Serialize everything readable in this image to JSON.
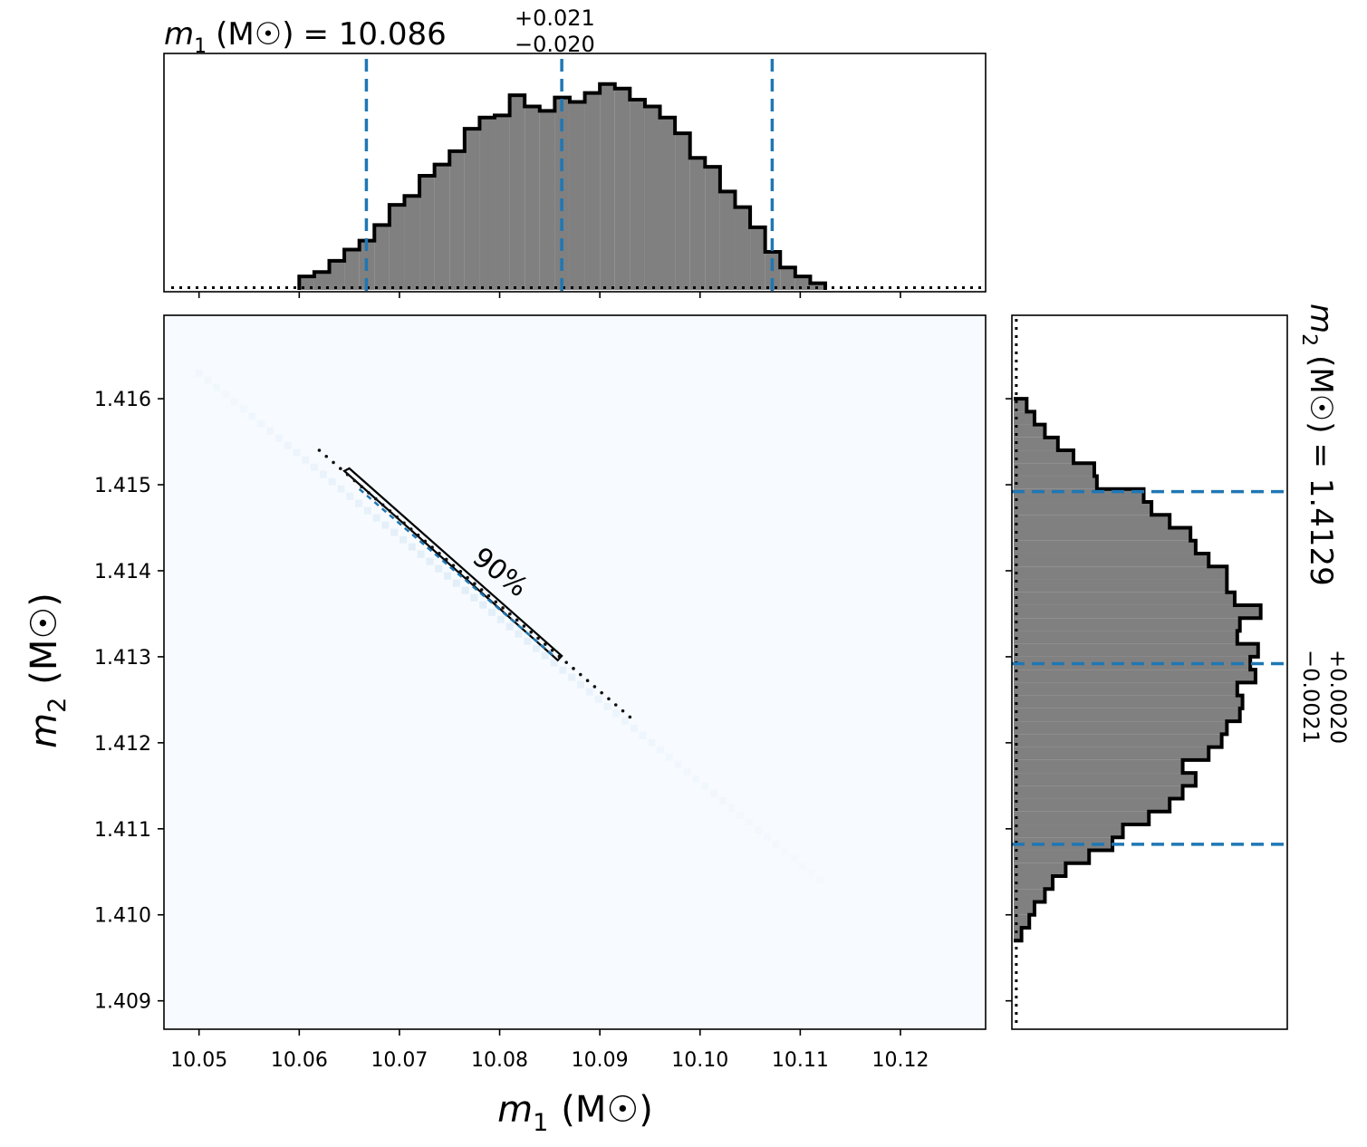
{
  "chart_data": [
    {
      "panel": "m1-marginal",
      "type": "area",
      "title": {
        "symbol": "m",
        "sub": "1",
        "unit": "(M☉)",
        "equals": "= 10.086",
        "sup": "+0.021",
        "inf": "−0.020"
      },
      "xlim": [
        10.0465,
        10.1285
      ],
      "bin_edges": [
        10.06,
        10.0615,
        10.063,
        10.0645,
        10.066,
        10.0675,
        10.069,
        10.0705,
        10.072,
        10.0735,
        10.075,
        10.0765,
        10.078,
        10.0795,
        10.081,
        10.0825,
        10.084,
        10.0855,
        10.087,
        10.0885,
        10.09,
        10.0915,
        10.093,
        10.0945,
        10.096,
        10.0975,
        10.099,
        10.1005,
        10.102,
        10.1035,
        10.105,
        10.1065,
        10.108,
        10.1095,
        10.111,
        10.1125
      ],
      "values": [
        0.06,
        0.08,
        0.13,
        0.18,
        0.22,
        0.29,
        0.38,
        0.42,
        0.51,
        0.56,
        0.62,
        0.72,
        0.77,
        0.78,
        0.87,
        0.82,
        0.8,
        0.86,
        0.84,
        0.88,
        0.92,
        0.9,
        0.85,
        0.82,
        0.77,
        0.7,
        0.59,
        0.55,
        0.44,
        0.37,
        0.28,
        0.17,
        0.1,
        0.06,
        0.03
      ],
      "quantiles": [
        10.0667,
        10.0862,
        10.1072
      ],
      "prior_level": 0.01
    },
    {
      "panel": "joint",
      "type": "heatmap",
      "xlabel": {
        "symbol": "m",
        "sub": "1",
        "unit": "(M☉)"
      },
      "ylabel": {
        "symbol": "m",
        "sub": "2",
        "unit": "(M☉)"
      },
      "xlim": [
        10.0465,
        10.1285
      ],
      "ylim": [
        1.40867,
        1.41697
      ],
      "xticks": [
        10.05,
        10.06,
        10.07,
        10.08,
        10.09,
        10.1,
        10.11,
        10.12
      ],
      "xtick_labels": [
        "10.05",
        "10.06",
        "10.07",
        "10.08",
        "10.09",
        "10.10",
        "10.11",
        "10.12"
      ],
      "yticks": [
        1.409,
        1.41,
        1.411,
        1.412,
        1.413,
        1.414,
        1.415,
        1.416
      ],
      "ytick_labels": [
        "1.409",
        "1.410",
        "1.411",
        "1.412",
        "1.413",
        "1.414",
        "1.415",
        "1.416"
      ],
      "ridge": {
        "x_start": 10.05,
        "y_start": 1.4163,
        "x_end": 10.112,
        "y_end": 1.4104
      },
      "contour": {
        "label": "90%",
        "points": [
          [
            10.0645,
            1.41516
          ],
          [
            10.065,
            1.41519
          ],
          [
            10.0862,
            1.41301
          ],
          [
            10.0858,
            1.41296
          ]
        ],
        "markers_from": [
          10.062,
          1.4154
        ],
        "markers_to": [
          10.093,
          1.4123
        ]
      },
      "colors": {
        "background": "#f7fbff",
        "ridge": "#deebf7",
        "contour": "#000000",
        "median": "#1f77b4"
      }
    },
    {
      "panel": "m2-marginal",
      "type": "area",
      "title": {
        "symbol": "m",
        "sub": "2",
        "unit": "(M☉)",
        "equals": "= 1.4129",
        "sup": "+0.0020",
        "inf": "−0.0021"
      },
      "ylim": [
        1.40867,
        1.41697
      ],
      "bin_edges": [
        1.4097,
        1.40985,
        1.41,
        1.41015,
        1.4103,
        1.41045,
        1.4106,
        1.41075,
        1.4109,
        1.41105,
        1.4112,
        1.41135,
        1.4115,
        1.41165,
        1.4118,
        1.41195,
        1.4121,
        1.41225,
        1.4124,
        1.41255,
        1.4127,
        1.41285,
        1.413,
        1.41315,
        1.4133,
        1.41345,
        1.4136,
        1.41375,
        1.4139,
        1.41405,
        1.4142,
        1.41435,
        1.4145,
        1.41465,
        1.4148,
        1.41495,
        1.4151,
        1.41525,
        1.4154,
        1.41555,
        1.4157,
        1.41585,
        1.416
      ],
      "values": [
        0.03,
        0.06,
        0.08,
        0.12,
        0.15,
        0.2,
        0.29,
        0.38,
        0.42,
        0.52,
        0.6,
        0.65,
        0.7,
        0.65,
        0.75,
        0.8,
        0.82,
        0.87,
        0.88,
        0.86,
        0.93,
        0.91,
        0.94,
        0.86,
        0.87,
        0.95,
        0.85,
        0.82,
        0.82,
        0.75,
        0.7,
        0.68,
        0.6,
        0.53,
        0.5,
        0.32,
        0.31,
        0.23,
        0.17,
        0.12,
        0.08,
        0.05
      ],
      "quantiles": [
        1.41082,
        1.41292,
        1.41492
      ],
      "prior_level": 0.01
    }
  ]
}
